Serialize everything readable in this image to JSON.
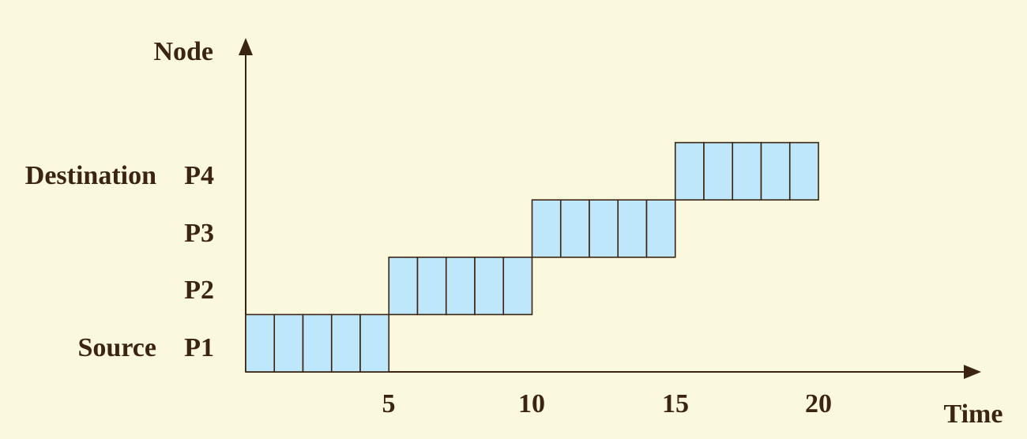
{
  "diagram": {
    "y_axis_title": "Node",
    "x_axis_title": "Time",
    "x_ticks": [
      "5",
      "10",
      "15",
      "20"
    ],
    "rows": [
      {
        "role": "Source",
        "node": "P1",
        "start": 0,
        "end": 5
      },
      {
        "role": "",
        "node": "P2",
        "start": 5,
        "end": 10
      },
      {
        "role": "",
        "node": "P3",
        "start": 10,
        "end": 15
      },
      {
        "role": "Destination",
        "node": "P4",
        "start": 15,
        "end": 20
      }
    ],
    "colors": {
      "background": "#fbf9dd",
      "cell_fill": "#bfe7fb",
      "ink": "#3b2412"
    }
  }
}
